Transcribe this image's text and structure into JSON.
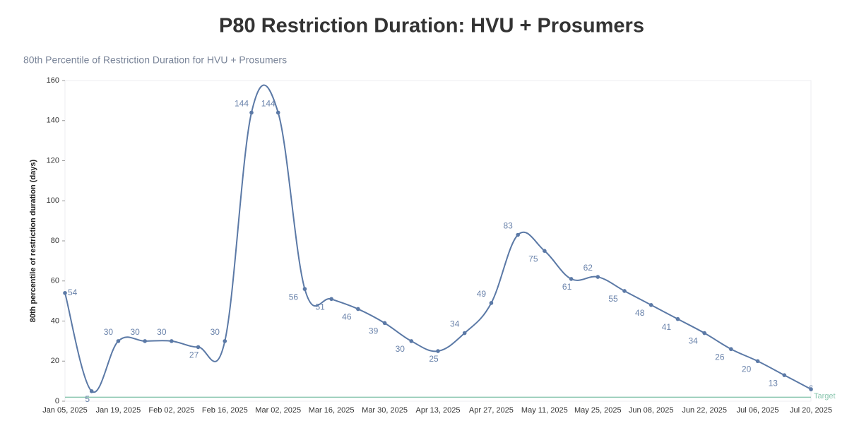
{
  "chart_data": {
    "type": "line",
    "title": "P80 Restriction Duration: HVU + Prosumers",
    "subtitle": "80th Percentile of Restriction Duration for HVU + Prosumers",
    "y_label": "80th percentile of restriction duration (days)",
    "categories": [
      "Jan 05, 2025",
      null,
      "Jan 19, 2025",
      null,
      "Feb 02, 2025",
      null,
      "Feb 16, 2025",
      null,
      "Mar 02, 2025",
      null,
      "Mar 16, 2025",
      null,
      "Mar 30, 2025",
      null,
      "Apr 13, 2025",
      null,
      "Apr 27, 2025",
      null,
      "May 11, 2025",
      null,
      "May 25, 2025",
      null,
      "Jun 08, 2025",
      null,
      "Jun 22, 2025",
      null,
      "Jul 06, 2025",
      null,
      "Jul 20, 2025"
    ],
    "series": [
      {
        "name": "P80",
        "color": "#5b79a6",
        "values": [
          54,
          5,
          30,
          30,
          30,
          27,
          30,
          144,
          144,
          56,
          51,
          46,
          39,
          30,
          25,
          34,
          49,
          83,
          75,
          61,
          62,
          55,
          48,
          41,
          34,
          26,
          20,
          13,
          6
        ]
      }
    ],
    "target": {
      "value": 2,
      "label": "Target",
      "color": "#8cc7b0"
    },
    "ylim": [
      0,
      160
    ],
    "yticks": [
      0,
      20,
      40,
      60,
      80,
      100,
      120,
      140,
      160
    ],
    "grid": false
  }
}
